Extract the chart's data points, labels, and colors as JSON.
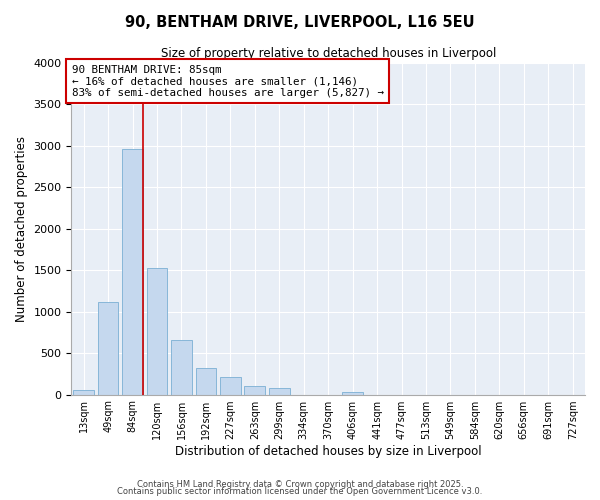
{
  "title": "90, BENTHAM DRIVE, LIVERPOOL, L16 5EU",
  "subtitle": "Size of property relative to detached houses in Liverpool",
  "xlabel": "Distribution of detached houses by size in Liverpool",
  "ylabel": "Number of detached properties",
  "bin_labels": [
    "13sqm",
    "49sqm",
    "84sqm",
    "120sqm",
    "156sqm",
    "192sqm",
    "227sqm",
    "263sqm",
    "299sqm",
    "334sqm",
    "370sqm",
    "406sqm",
    "441sqm",
    "477sqm",
    "513sqm",
    "549sqm",
    "584sqm",
    "620sqm",
    "656sqm",
    "691sqm",
    "727sqm"
  ],
  "bar_heights": [
    55,
    1120,
    2960,
    1530,
    660,
    320,
    210,
    100,
    80,
    0,
    0,
    30,
    0,
    0,
    0,
    0,
    0,
    0,
    0,
    0,
    0
  ],
  "bar_color": "#c5d8ee",
  "bar_edge_color": "#7aafd4",
  "annotation_line1": "90 BENTHAM DRIVE: 85sqm",
  "annotation_line2": "← 16% of detached houses are smaller (1,146)",
  "annotation_line3": "83% of semi-detached houses are larger (5,827) →",
  "ylim": [
    0,
    4000
  ],
  "yticks": [
    0,
    500,
    1000,
    1500,
    2000,
    2500,
    3000,
    3500,
    4000
  ],
  "footer1": "Contains HM Land Registry data © Crown copyright and database right 2025.",
  "footer2": "Contains public sector information licensed under the Open Government Licence v3.0.",
  "bg_color": "#ffffff",
  "plot_bg_color": "#e8eef6",
  "red_line_color": "#cc0000",
  "annotation_box_edge": "#cc0000",
  "grid_color": "#ffffff",
  "title_fontsize": 10.5,
  "subtitle_fontsize": 8.5
}
